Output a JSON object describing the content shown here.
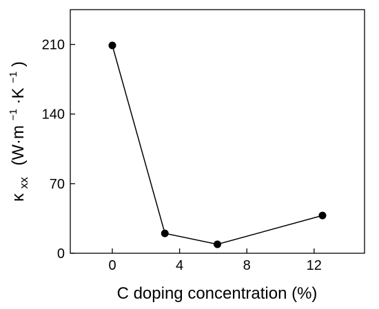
{
  "chart_data": {
    "type": "line",
    "title": "",
    "xlabel": "C doping concentration (%)",
    "ylabel": {
      "symbol": "κ",
      "subscript": "xx",
      "units_prefix": "(W·m",
      "exp1": "−1",
      "units_mid": "·K",
      "exp2": "−1",
      "units_suffix": ")"
    },
    "xlim": [
      -2.5,
      15
    ],
    "ylim": [
      0,
      245
    ],
    "xticks": [
      0,
      4,
      8,
      12
    ],
    "yticks": [
      0,
      70,
      140,
      210
    ],
    "xtick_labels": [
      "0",
      "4",
      "8",
      "12"
    ],
    "ytick_labels": [
      "0",
      "70",
      "140",
      "210"
    ],
    "grid": false,
    "legend": "none",
    "series": [
      {
        "x": [
          0,
          3.125,
          6.25,
          12.5
        ],
        "y": [
          209,
          20,
          9,
          38
        ],
        "color": "#000000",
        "marker": "circle-filled"
      }
    ]
  }
}
